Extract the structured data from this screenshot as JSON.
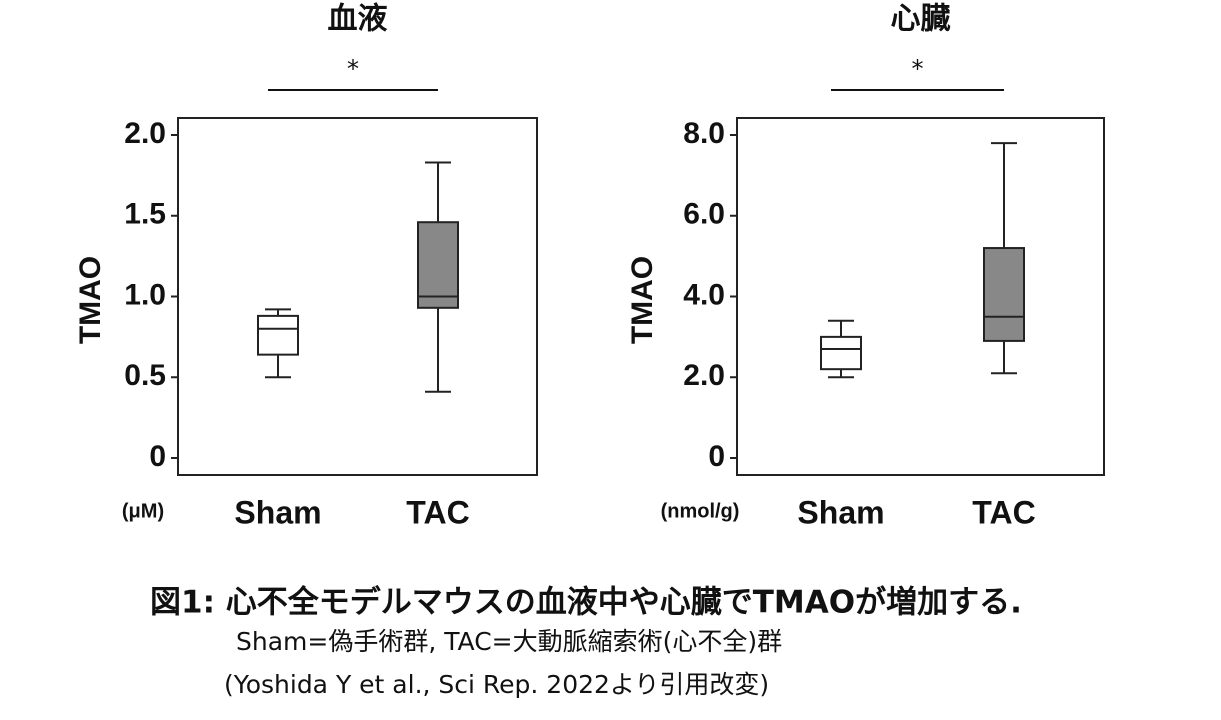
{
  "chart_data": [
    {
      "type": "box",
      "title": "血液",
      "significance": "*",
      "y_label": "TMAO",
      "unit": "(μM)",
      "categories": [
        "Sham",
        "TAC"
      ],
      "boxes": [
        {
          "min": 0.5,
          "q1": 0.64,
          "median": 0.8,
          "q3": 0.88,
          "max": 0.92
        },
        {
          "min": 0.41,
          "q1": 0.93,
          "median": 1.0,
          "q3": 1.46,
          "max": 1.83
        }
      ],
      "colors": [
        "#ffffff",
        "#888888"
      ],
      "ylim": [
        0,
        2
      ],
      "yticks": [
        0,
        0.5,
        {
          "value": 1,
          "label": "1.0"
        },
        1.5,
        {
          "value": 2,
          "label": "2.0"
        }
      ]
    },
    {
      "type": "box",
      "title": "心臓",
      "significance": "*",
      "y_label": "TMAO",
      "unit": "(nmol/g)",
      "categories": [
        "Sham",
        "TAC"
      ],
      "boxes": [
        {
          "min": 2.0,
          "q1": 2.2,
          "median": 2.7,
          "q3": 3.0,
          "max": 3.4
        },
        {
          "min": 2.1,
          "q1": 2.9,
          "median": 3.5,
          "q3": 5.2,
          "max": 7.8
        }
      ],
      "colors": [
        "#ffffff",
        "#888888"
      ],
      "ylim": [
        0,
        8
      ],
      "yticks": [
        0,
        {
          "value": 2,
          "label": "2.0"
        },
        {
          "value": 4,
          "label": "4.0"
        },
        {
          "value": 6,
          "label": "6.0"
        },
        {
          "value": 8,
          "label": "8.0"
        }
      ]
    }
  ],
  "caption": [
    "図1: 心不全モデルマウスの血液中や心臓でTMAOが増加する.",
    "Sham=偽手術群, TAC=大動脈縮索術(心不全)群",
    "(Yoshida Y et al., Sci Rep. 2022より引用改変)"
  ]
}
